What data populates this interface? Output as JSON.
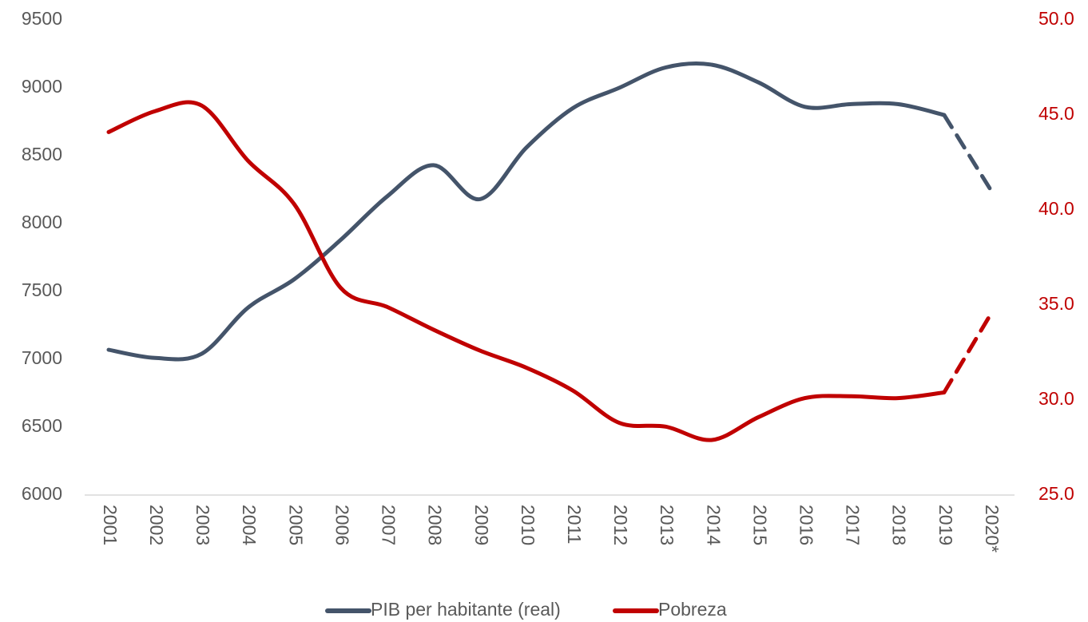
{
  "chart_data": {
    "type": "line",
    "categories": [
      "2001",
      "2002",
      "2003",
      "2004",
      "2005",
      "2006",
      "2007",
      "2008",
      "2009",
      "2010",
      "2011",
      "2012",
      "2013",
      "2014",
      "2015",
      "2016",
      "2017",
      "2018",
      "2019",
      "2020*"
    ],
    "series": [
      {
        "name": "PIB per habitante (real)",
        "color": "#44546a",
        "axis": "y",
        "values": [
          7070,
          7010,
          7040,
          7380,
          7590,
          7880,
          8200,
          8430,
          8180,
          8560,
          8850,
          9000,
          9150,
          9170,
          9040,
          8860,
          8880,
          8880,
          8800,
          8250
        ]
      },
      {
        "name": "Pobreza",
        "color": "#c00000",
        "axis": "y2",
        "values": [
          44.1,
          45.2,
          45.5,
          42.6,
          40.3,
          35.9,
          34.9,
          33.7,
          32.6,
          31.7,
          30.5,
          28.8,
          28.6,
          27.9,
          29.1,
          30.1,
          30.2,
          30.1,
          30.4,
          34.5
        ]
      }
    ],
    "dashed_from": 18,
    "ylim": [
      6000,
      9500
    ],
    "yticks": [
      6000,
      6500,
      7000,
      7500,
      8000,
      8500,
      9000,
      9500
    ],
    "y2lim": [
      25,
      50
    ],
    "y2ticks": [
      {
        "value": 25,
        "label": "25.0"
      },
      {
        "value": 30,
        "label": "30.0"
      },
      {
        "value": 35,
        "label": "35.0"
      },
      {
        "value": 40,
        "label": "40.0"
      },
      {
        "value": 45,
        "label": "45.0"
      },
      {
        "value": 50,
        "label": "50.0"
      }
    ],
    "legend": "bottom"
  }
}
